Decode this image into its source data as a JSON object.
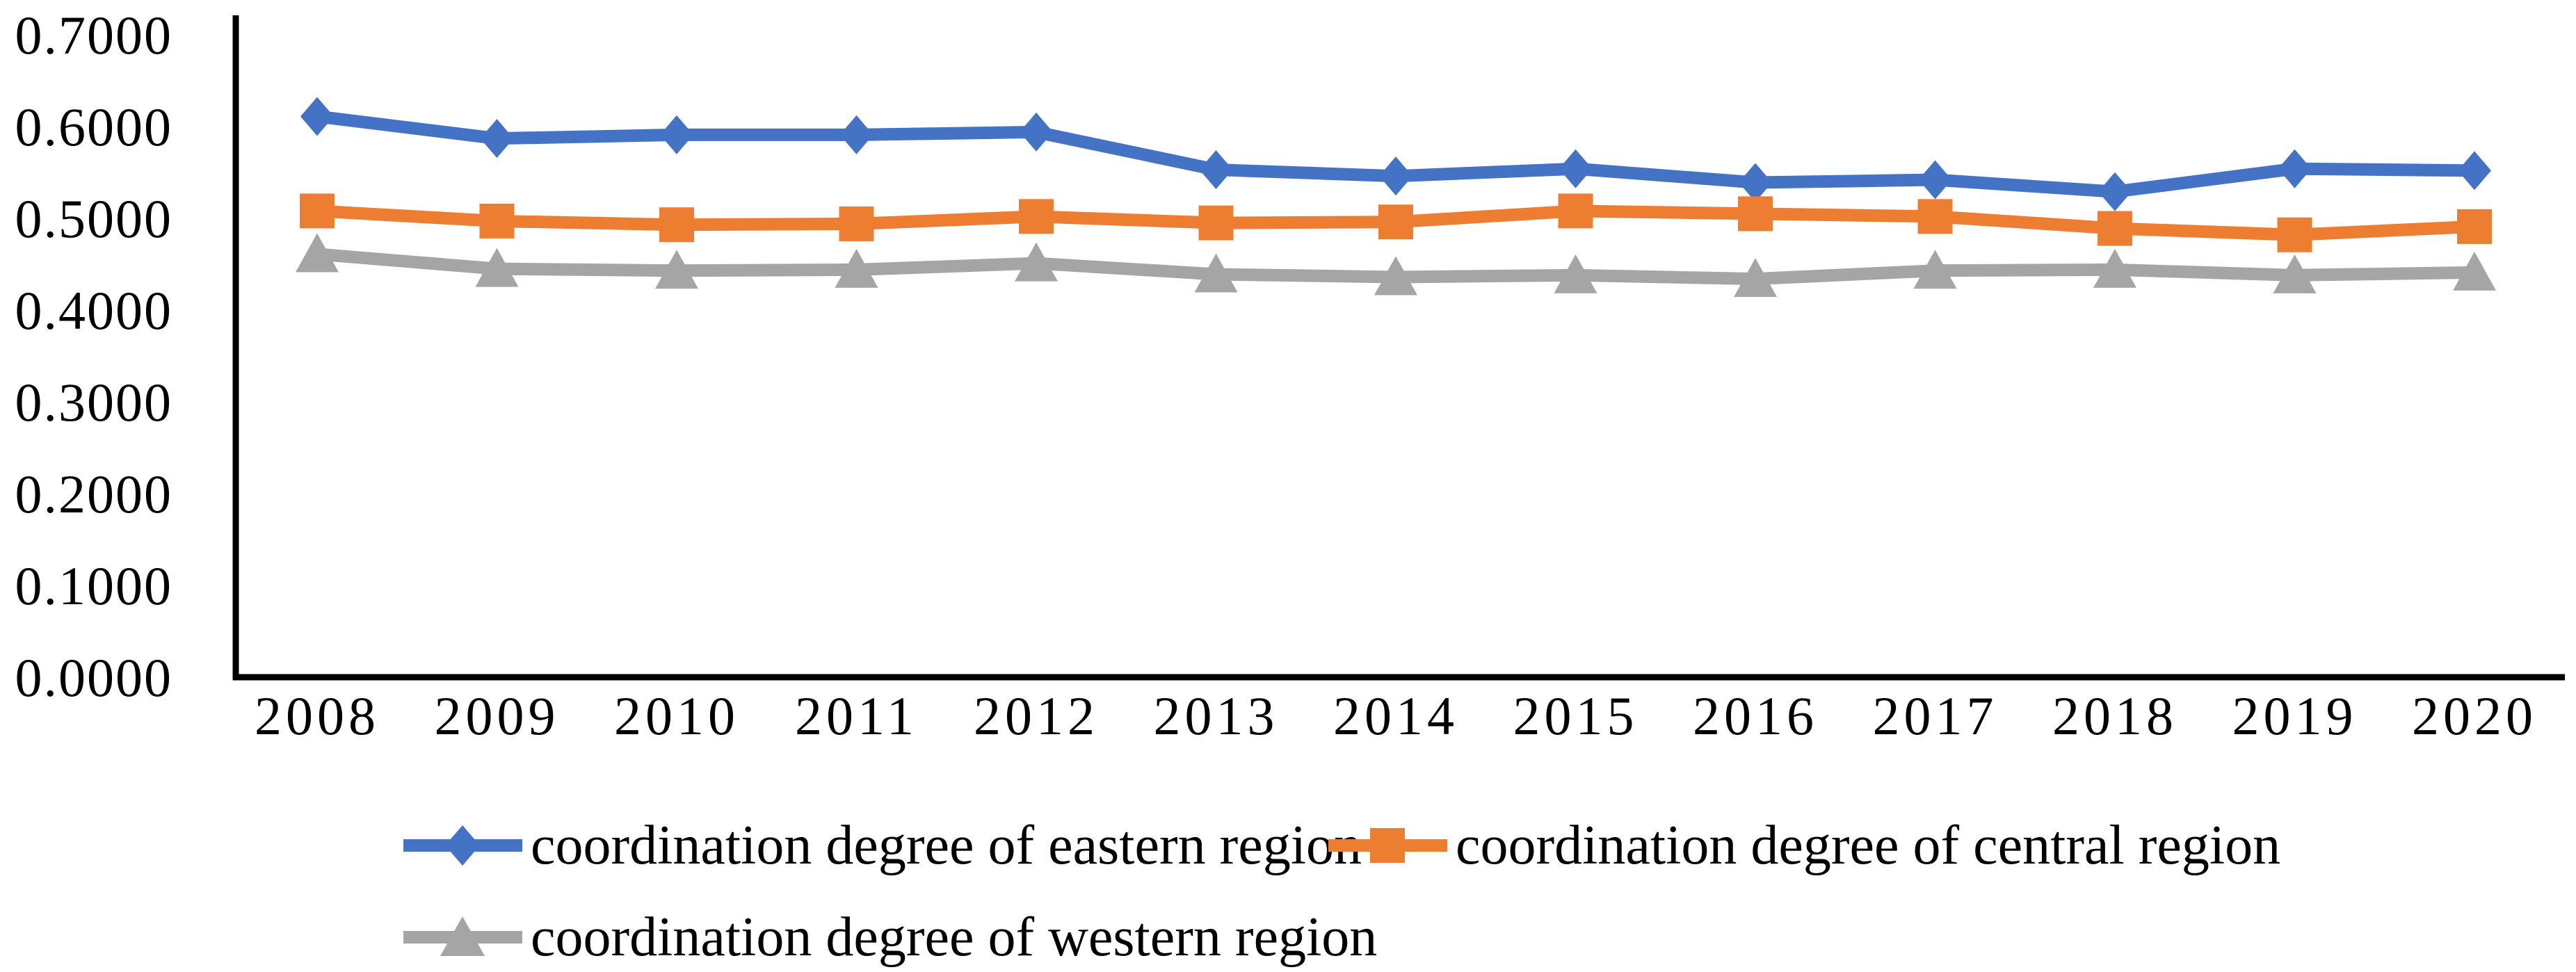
{
  "chart_data": {
    "type": "line",
    "title": "",
    "xlabel": "",
    "ylabel": "",
    "categories": [
      "2008",
      "2009",
      "2010",
      "2011",
      "2012",
      "2013",
      "2014",
      "2015",
      "2016",
      "2017",
      "2018",
      "2019",
      "2020"
    ],
    "series": [
      {
        "name": "coordination degree of eastern region",
        "color": "#4472C4",
        "marker": "diamond",
        "values": [
          0.611,
          0.587,
          0.591,
          0.591,
          0.594,
          0.553,
          0.546,
          0.554,
          0.539,
          0.542,
          0.529,
          0.554,
          0.552
        ]
      },
      {
        "name": "coordination degree of central region",
        "color": "#ED7D31",
        "marker": "square",
        "values": [
          0.508,
          0.497,
          0.493,
          0.494,
          0.502,
          0.495,
          0.496,
          0.508,
          0.505,
          0.502,
          0.489,
          0.482,
          0.491
        ]
      },
      {
        "name": "coordination degree of western region",
        "color": "#A5A5A5",
        "marker": "triangle",
        "values": [
          0.461,
          0.445,
          0.443,
          0.444,
          0.451,
          0.439,
          0.436,
          0.438,
          0.434,
          0.443,
          0.444,
          0.438,
          0.441
        ]
      }
    ],
    "ylim": [
      0,
      0.7
    ],
    "y_tick_labels": [
      "0.0000",
      "0.1000",
      "0.2000",
      "0.3000",
      "0.4000",
      "0.5000",
      "0.6000",
      "0.7000"
    ],
    "grid": false,
    "legend_position": "bottom",
    "axis_color": "#000000",
    "text_color": "#000000"
  }
}
